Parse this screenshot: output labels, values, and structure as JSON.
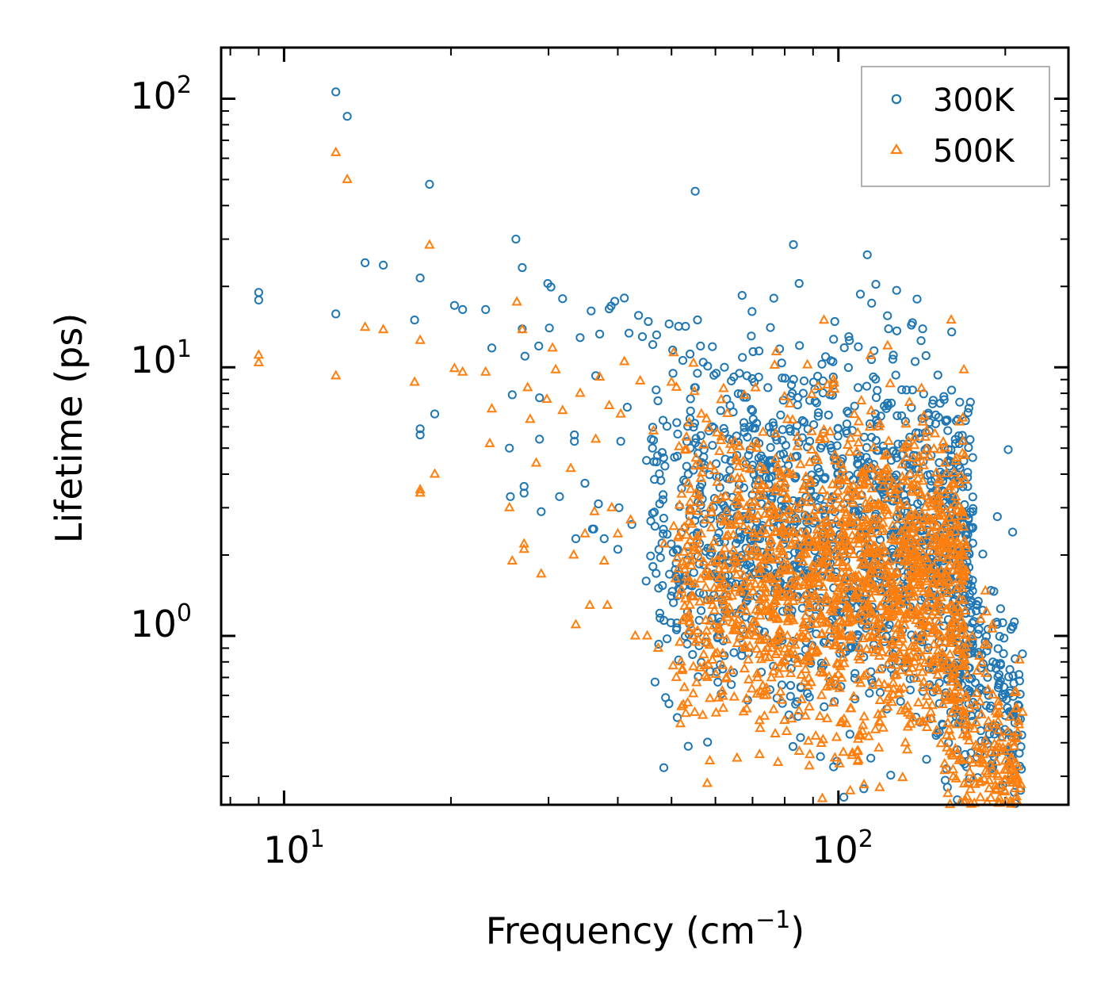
{
  "chart_data": {
    "type": "scatter",
    "title": "",
    "xlabel": "Frequency (cm",
    "xlabel_sup": "−1",
    "xlabel_end": ")",
    "ylabel": "Lifetime (ps)",
    "xscale": "log",
    "yscale": "log",
    "xlim": [
      7.7,
      260
    ],
    "ylim": [
      0.235,
      155
    ],
    "x_ticks": [
      {
        "value": 10,
        "base": "10",
        "exp": "1"
      },
      {
        "value": 100,
        "base": "10",
        "exp": "2"
      }
    ],
    "y_ticks": [
      {
        "value": 1,
        "base": "10",
        "exp": "0"
      },
      {
        "value": 10,
        "base": "10",
        "exp": "1"
      },
      {
        "value": 100,
        "base": "10",
        "exp": "2"
      }
    ],
    "legend": {
      "position": "top-right"
    },
    "series": [
      {
        "name": "300K",
        "marker": "circle",
        "color": "#1f77b4",
        "points": [
          [
            9.0,
            19.0
          ],
          [
            9.0,
            17.8
          ],
          [
            12.4,
            106
          ],
          [
            13.0,
            86
          ],
          [
            12.4,
            15.8
          ],
          [
            14.0,
            24.5
          ],
          [
            15.1,
            24.0
          ],
          [
            17.6,
            21.5
          ],
          [
            17.2,
            15.0
          ],
          [
            18.3,
            48
          ],
          [
            18.7,
            6.7
          ],
          [
            17.6,
            5.9
          ],
          [
            17.6,
            5.6
          ],
          [
            20.3,
            17.0
          ],
          [
            21.0,
            16.4
          ],
          [
            23.1,
            16.4
          ],
          [
            23.7,
            11.8
          ],
          [
            25.8,
            7.9
          ],
          [
            26.2,
            30.0
          ],
          [
            26.9,
            23.5
          ],
          [
            25.6,
            3.3
          ],
          [
            27.1,
            3.6
          ],
          [
            27.1,
            3.4
          ],
          [
            25.5,
            5.0
          ],
          [
            26.9,
            13.9
          ],
          [
            27.2,
            11.0
          ],
          [
            28.8,
            12.0
          ],
          [
            28.9,
            5.4
          ],
          [
            28.9,
            7.7
          ],
          [
            29.1,
            2.9
          ],
          [
            29.9,
            20.5
          ],
          [
            30.3,
            19.9
          ],
          [
            31.8,
            18.0
          ],
          [
            30.1,
            14.0
          ],
          [
            31.4,
            3.3
          ],
          [
            33.4,
            5.3
          ],
          [
            33.6,
            2.3
          ],
          [
            33.4,
            5.6
          ],
          [
            34.2,
            12.9
          ],
          [
            34.9,
            3.7
          ],
          [
            35.8,
            16.2
          ],
          [
            36.0,
            2.5
          ],
          [
            36.2,
            2.5
          ],
          [
            36.5,
            9.3
          ],
          [
            36.9,
            3.1
          ],
          [
            37.1,
            13.3
          ],
          [
            37.8,
            2.3
          ],
          [
            38.6,
            16.5
          ],
          [
            38.9,
            16.9
          ],
          [
            39.5,
            17.6
          ],
          [
            40.0,
            2.1
          ],
          [
            40.2,
            3.0
          ],
          [
            40.5,
            5.3
          ],
          [
            41.1,
            18.1
          ],
          [
            41.6,
            7.1
          ],
          [
            41.9,
            13.4
          ],
          [
            42.4,
            2.6
          ],
          [
            43.6,
            15.6
          ],
          [
            44.3,
            13.0
          ],
          [
            45.0,
            1.6
          ],
          [
            45.4,
            14.8
          ],
          [
            46.2,
            5.0
          ],
          [
            47.0,
            13.2
          ],
          [
            47.6,
            3.1
          ],
          [
            48.3,
            2.4
          ],
          [
            49.5,
            14.5
          ],
          [
            50.3,
            9.5
          ],
          [
            51.5,
            14.2
          ],
          [
            52.4,
            10.6
          ],
          [
            53.0,
            14.2
          ],
          [
            54.0,
            11.2
          ],
          [
            55.2,
            8.4
          ],
          [
            56.4,
            12.0
          ],
          [
            58.1,
            10.1
          ],
          [
            60.2,
            9.5
          ],
          [
            62.3,
            10.0
          ],
          [
            64.1,
            8.9
          ],
          [
            66.3,
            9.5
          ],
          [
            68.4,
            9.3
          ],
          [
            70.5,
            8.8
          ],
          [
            71.9,
            11.5
          ],
          [
            74.6,
            8.4
          ],
          [
            78.3,
            11.7
          ],
          [
            82.3,
            8.6
          ],
          [
            86.4,
            8.0
          ],
          [
            90.2,
            8.8
          ],
          [
            93.8,
            8.9
          ],
          [
            97.9,
            9.2
          ],
          [
            98.5,
            14.8
          ],
          [
            104.4,
            13.0
          ],
          [
            108.5,
            8.4
          ],
          [
            112.5,
            8.5
          ],
          [
            117.5,
            8.2
          ],
          [
            123.0,
            7.2
          ],
          [
            130.0,
            6.6
          ],
          [
            138.0,
            5.7
          ],
          [
            147.0,
            4.7
          ],
          [
            155.0,
            4.0
          ],
          [
            162.0,
            3.5
          ],
          [
            168.0,
            2.6
          ],
          [
            172.0,
            1.8
          ],
          [
            178.0,
            1.3
          ],
          [
            184.0,
            0.95
          ],
          [
            190.0,
            0.8
          ],
          [
            196.0,
            0.68
          ],
          [
            201.0,
            0.58
          ],
          [
            205.0,
            0.52
          ],
          [
            208.0,
            0.5
          ],
          [
            211.0,
            0.49
          ],
          [
            213.0,
            0.49
          ]
        ]
      },
      {
        "name": "500K",
        "marker": "triangle",
        "color": "#ff7f0e",
        "points": [
          [
            9.0,
            11.1
          ],
          [
            9.0,
            10.4
          ],
          [
            12.4,
            63
          ],
          [
            13.0,
            50
          ],
          [
            12.4,
            9.3
          ],
          [
            14.0,
            14.1
          ],
          [
            15.1,
            13.8
          ],
          [
            17.6,
            12.6
          ],
          [
            17.2,
            8.8
          ],
          [
            18.3,
            28.5
          ],
          [
            18.7,
            4.0
          ],
          [
            17.6,
            3.5
          ],
          [
            17.6,
            3.4
          ],
          [
            20.3,
            9.9
          ],
          [
            21.0,
            9.6
          ],
          [
            23.1,
            9.6
          ],
          [
            23.7,
            7.0
          ],
          [
            23.5,
            5.2
          ],
          [
            25.5,
            3.0
          ],
          [
            25.8,
            1.9
          ],
          [
            26.3,
            17.5
          ],
          [
            26.9,
            13.8
          ],
          [
            27.1,
            2.2
          ],
          [
            27.1,
            2.1
          ],
          [
            27.5,
            8.4
          ],
          [
            27.8,
            6.4
          ],
          [
            28.5,
            4.4
          ],
          [
            29.1,
            1.7
          ],
          [
            29.8,
            7.6
          ],
          [
            30.5,
            11.8
          ],
          [
            30.9,
            9.8
          ],
          [
            31.8,
            6.9
          ],
          [
            32.9,
            4.2
          ],
          [
            33.3,
            2.0
          ],
          [
            33.6,
            1.1
          ],
          [
            34.2,
            8.0
          ],
          [
            34.9,
            2.4
          ],
          [
            35.6,
            1.3
          ],
          [
            36.3,
            2.9
          ],
          [
            36.5,
            5.4
          ],
          [
            37.1,
            9.2
          ],
          [
            37.8,
            1.9
          ],
          [
            38.3,
            1.3
          ],
          [
            38.6,
            7.2
          ],
          [
            39.0,
            3.0
          ],
          [
            40.0,
            2.4
          ],
          [
            40.5,
            6.7
          ],
          [
            41.1,
            10.5
          ],
          [
            42.2,
            2.7
          ],
          [
            43.0,
            1.0
          ],
          [
            43.9,
            8.9
          ],
          [
            45.2,
            1.0
          ],
          [
            46.4,
            5.8
          ],
          [
            47.3,
            0.9
          ],
          [
            48.5,
            2.2
          ],
          [
            50.0,
            8.8
          ],
          [
            51.0,
            0.7
          ],
          [
            52.0,
            0.8
          ],
          [
            53.2,
            5.5
          ],
          [
            54.6,
            1.0
          ],
          [
            56.6,
            6.7
          ],
          [
            58.0,
            0.7
          ],
          [
            60.4,
            5.7
          ],
          [
            62.8,
            0.7
          ],
          [
            65.4,
            4.6
          ],
          [
            68.1,
            0.9
          ],
          [
            71.2,
            5.2
          ],
          [
            74.5,
            0.9
          ],
          [
            77.7,
            4.2
          ],
          [
            80.9,
            1.0
          ],
          [
            84.3,
            5.5
          ],
          [
            88.1,
            1.0
          ],
          [
            91.8,
            4.5
          ],
          [
            95.6,
            8.6
          ],
          [
            98.0,
            9.0
          ],
          [
            100.2,
            1.0
          ],
          [
            105.0,
            1.0
          ],
          [
            110.0,
            7.5
          ],
          [
            115.0,
            1.0
          ],
          [
            120.0,
            3.8
          ],
          [
            125.0,
            0.95
          ],
          [
            131.0,
            5.0
          ],
          [
            138.0,
            0.9
          ],
          [
            145.0,
            3.3
          ],
          [
            152.0,
            2.8
          ],
          [
            158.0,
            0.8
          ],
          [
            164.0,
            2.2
          ],
          [
            170.0,
            0.6
          ],
          [
            176.0,
            0.45
          ],
          [
            182.0,
            0.38
          ],
          [
            188.0,
            0.33
          ],
          [
            194.0,
            0.3
          ],
          [
            200.0,
            0.29
          ],
          [
            205.0,
            0.29
          ],
          [
            210.0,
            0.3
          ]
        ]
      }
    ],
    "dense_clusters": [
      {
        "series": "300K",
        "x": [
          45,
          175
        ],
        "center_y": 2.4,
        "spread": 0.32,
        "count": 1400,
        "jitter": 0.09
      },
      {
        "series": "300K",
        "x": [
          150,
          215
        ],
        "center_y": 1.0,
        "spread": 0.25,
        "count": 220,
        "jitter": 0.07
      },
      {
        "series": "500K",
        "x": [
          50,
          170
        ],
        "center_y": 1.6,
        "spread": 0.3,
        "count": 1600,
        "jitter": 0.09
      },
      {
        "series": "500K",
        "x": [
          155,
          215
        ],
        "center_y": 0.5,
        "spread": 0.25,
        "count": 260,
        "jitter": 0.07
      }
    ]
  }
}
